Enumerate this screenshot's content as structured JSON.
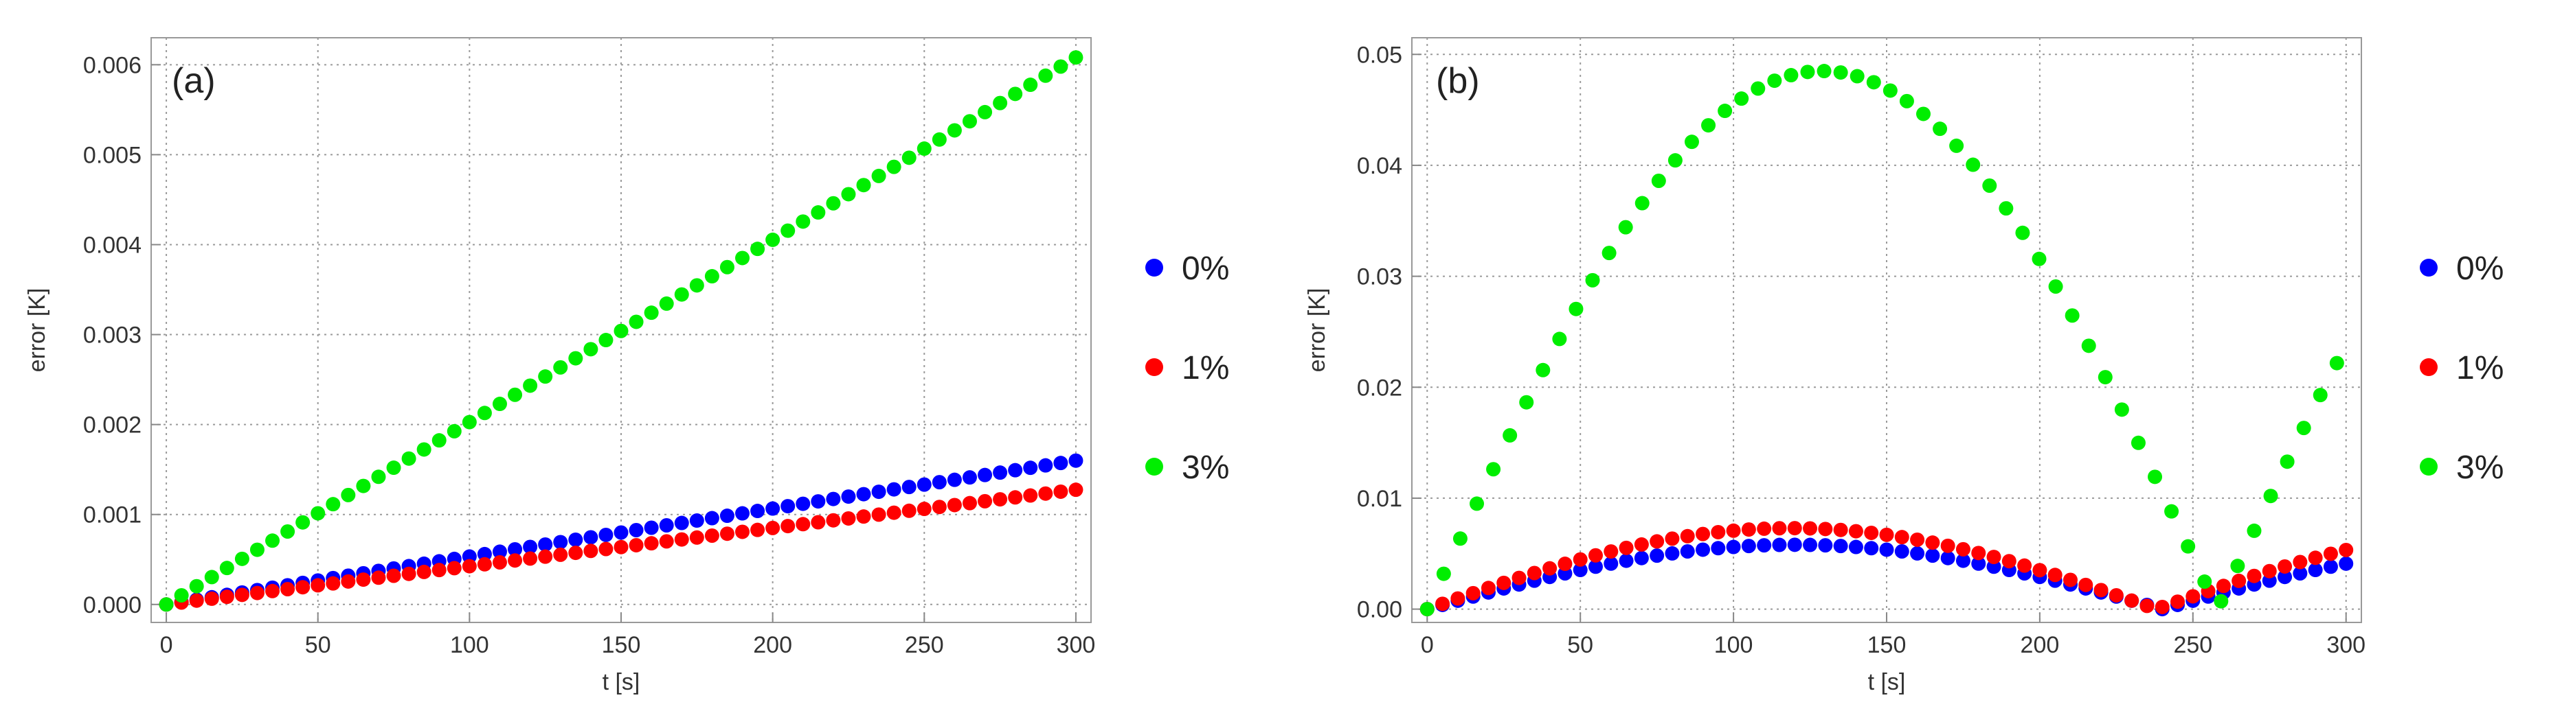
{
  "chart_data": [
    {
      "type": "scatter",
      "panel_label": "(a)",
      "xlabel": "t [s]",
      "ylabel": "error [K]",
      "xlim": [
        -5,
        305
      ],
      "ylim": [
        -0.0002,
        0.0063
      ],
      "xticks": [
        0,
        50,
        100,
        150,
        200,
        250,
        300
      ],
      "xtick_labels": [
        "0",
        "50",
        "100",
        "150",
        "200",
        "250",
        "300"
      ],
      "yticks": [
        0,
        0.001,
        0.002,
        0.003,
        0.004,
        0.005,
        0.006
      ],
      "ytick_labels": [
        "0.000",
        "0.001",
        "0.002",
        "0.003",
        "0.004",
        "0.005",
        "0.006"
      ],
      "grid": true,
      "legend_position": "right",
      "x_start": 0,
      "x_step": 5,
      "x_count": 61,
      "series": [
        {
          "name": "0%",
          "color": "#0000ff",
          "model": "linear",
          "slope": 5.33e-06
        },
        {
          "name": "1%",
          "color": "#ff0000",
          "model": "linear",
          "slope": 4.25e-06
        },
        {
          "name": "3%",
          "color": "#00ee00",
          "model": "linear",
          "slope": 2.027e-05
        }
      ]
    },
    {
      "type": "scatter",
      "panel_label": "(b)",
      "xlabel": "t [s]",
      "ylabel": "error [K]",
      "xlim": [
        -5,
        305
      ],
      "ylim": [
        -0.0012,
        0.0515
      ],
      "xticks": [
        0,
        50,
        100,
        150,
        200,
        250,
        300
      ],
      "xtick_labels": [
        "0",
        "50",
        "100",
        "150",
        "200",
        "250",
        "300"
      ],
      "yticks": [
        0,
        0.01,
        0.02,
        0.03,
        0.04,
        0.05
      ],
      "ytick_labels": [
        "0.00",
        "0.01",
        "0.02",
        "0.03",
        "0.04",
        "0.05"
      ],
      "grid": true,
      "legend_position": "right",
      "x_start": 0,
      "x_step": 5,
      "x_count": 61,
      "series": [
        {
          "name": "0%",
          "color": "#0000ff",
          "model": "abs_sin",
          "amplitude": 0.0058,
          "zero_t": 240
        },
        {
          "name": "1%",
          "color": "#ff0000",
          "model": "abs_sin",
          "amplitude": 0.0073,
          "zero_t": 238
        },
        {
          "name": "3%",
          "color": "#00ee00",
          "model": "abs_sin",
          "amplitude": 0.0485,
          "zero_t": 258,
          "x_step": 5.4
        }
      ]
    }
  ]
}
